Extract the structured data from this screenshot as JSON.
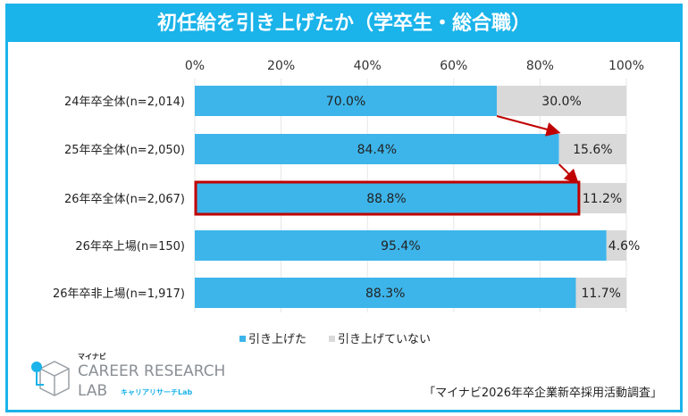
{
  "chart_data": {
    "type": "bar",
    "stacked": true,
    "orientation": "horizontal",
    "title": "初任給を引き上げたか（学卒生・総合職）",
    "categories": [
      "24年卒全体(n=2,014)",
      "25年卒全体(n=2,050)",
      "26年卒全体(n=2,067)",
      "26年卒上場(n=150)",
      "26年卒非上場(n=1,917)"
    ],
    "series": [
      {
        "name": "引き上げた",
        "color": "#3db5ea",
        "values": [
          70.0,
          84.4,
          88.8,
          95.4,
          88.3
        ],
        "labels": [
          "70.0%",
          "84.4%",
          "88.8%",
          "95.4%",
          "88.3%"
        ]
      },
      {
        "name": "引き上げていない",
        "color": "#d9d9d9",
        "values": [
          30.0,
          15.6,
          11.2,
          4.6,
          11.7
        ],
        "labels": [
          "30.0%",
          "15.6%",
          "11.2%",
          "4.6%",
          "11.7%"
        ]
      }
    ],
    "xlim": [
      0,
      100
    ],
    "xticks": [
      "0%",
      "20%",
      "40%",
      "60%",
      "80%",
      "100%"
    ],
    "legend": "bottom",
    "highlight_category": "26年卒全体(n=2,067)"
  },
  "source": "「マイナビ2026年卒企業新卒採用活動調査」",
  "logo": {
    "brand": "マイナビ",
    "line1": "CAREER RESEARCH",
    "line2": "LAB",
    "sub": "キャリアリサーチLab"
  }
}
